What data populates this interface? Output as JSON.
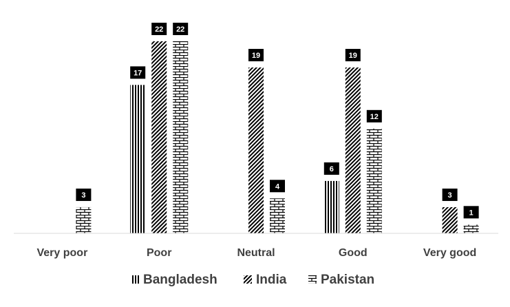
{
  "chart_data": {
    "type": "bar",
    "title": "",
    "xlabel": "",
    "ylabel": "",
    "ylim": [
      0,
      22
    ],
    "grid": false,
    "legend_position": "bottom",
    "categories": [
      "Very poor",
      "Poor",
      "Neutral",
      "Good",
      "Very good"
    ],
    "series": [
      {
        "name": "Bangladesh",
        "pattern": "vertical-lines",
        "values": [
          0,
          17,
          0,
          6,
          0
        ]
      },
      {
        "name": "India",
        "pattern": "diagonal-hatch",
        "values": [
          0,
          22,
          19,
          19,
          3
        ]
      },
      {
        "name": "Pakistan",
        "pattern": "brick",
        "values": [
          3,
          22,
          4,
          12,
          1
        ]
      }
    ],
    "label_bg_color": "#000000",
    "label_text_color": "#ffffff",
    "axis_color": "#d9d9d9",
    "pattern_color": "#000000"
  }
}
